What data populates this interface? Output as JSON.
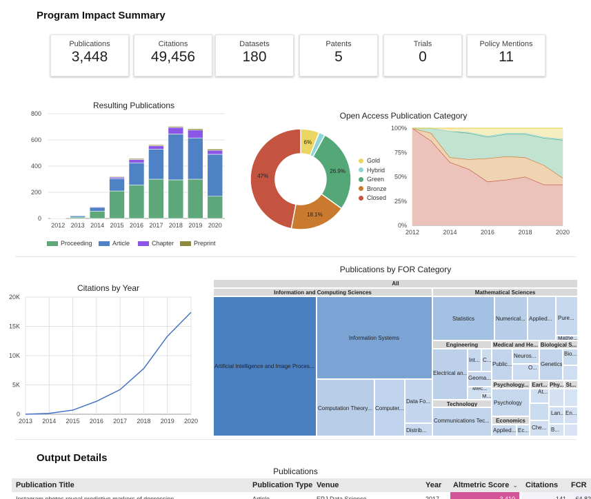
{
  "page": {
    "title": "Program Impact Summary",
    "output_title": "Output Details"
  },
  "kpis": [
    {
      "label": "Publications",
      "value": "3,448"
    },
    {
      "label": "Citations",
      "value": "49,456"
    },
    {
      "label": "Datasets",
      "value": "180"
    },
    {
      "label": "Patents",
      "value": "5"
    },
    {
      "label": "Trials",
      "value": "0"
    },
    {
      "label": "Policy Mentions",
      "value": "11"
    }
  ],
  "colors": {
    "proceeding": "#5da77b",
    "article": "#4f82c4",
    "chapter": "#8b55e8",
    "preprint": "#8c8a3a",
    "gold": "#ebd663",
    "hybrid": "#8fd5d6",
    "green": "#54a878",
    "bronze": "#c97a2e",
    "closed": "#c4533f",
    "altmetric": "#d4549a"
  },
  "chart_data": [
    {
      "type": "bar",
      "title": "Resulting Publications",
      "categories": [
        "2012",
        "2013",
        "2014",
        "2015",
        "2016",
        "2017",
        "2018",
        "2019",
        "2020"
      ],
      "ylim": [
        0,
        800
      ],
      "yticks": [
        "0",
        "200",
        "400",
        "600",
        "800"
      ],
      "series": [
        {
          "name": "Proceeding",
          "values": [
            3,
            10,
            55,
            210,
            255,
            300,
            295,
            300,
            170
          ]
        },
        {
          "name": "Article",
          "values": [
            3,
            10,
            30,
            95,
            170,
            230,
            350,
            315,
            320
          ]
        },
        {
          "name": "Chapter",
          "values": [
            1,
            2,
            5,
            10,
            25,
            25,
            50,
            60,
            30
          ]
        },
        {
          "name": "Preprint",
          "values": [
            0,
            1,
            3,
            5,
            8,
            8,
            8,
            10,
            10
          ]
        }
      ],
      "legend": "bottom"
    },
    {
      "type": "pie",
      "title": "Open Access Publication Category",
      "labels": [
        "Gold",
        "Hybrid",
        "Green",
        "Bronze",
        "Closed"
      ],
      "values": [
        6,
        2,
        26.9,
        18.1,
        47
      ],
      "data_labels": [
        "6%",
        "",
        "26.9%",
        "18.1%",
        "47%"
      ],
      "legend": "right"
    },
    {
      "type": "area",
      "x": [
        2012,
        2013,
        2014,
        2015,
        2016,
        2017,
        2018,
        2019,
        2020
      ],
      "xticks": [
        "2012",
        "2014",
        "2016",
        "2018",
        "2020"
      ],
      "yticks": [
        "0%",
        "25%",
        "50%",
        "75%",
        "100%"
      ],
      "ylim": [
        0,
        100
      ],
      "series": [
        {
          "name": "Closed",
          "values": [
            100,
            87,
            65,
            58,
            45,
            47,
            50,
            42,
            42
          ]
        },
        {
          "name": "Bronze",
          "values": [
            0,
            8,
            5,
            10,
            24,
            24,
            20,
            20,
            7
          ]
        },
        {
          "name": "Green",
          "values": [
            0,
            5,
            27,
            27,
            22,
            23,
            24,
            28,
            39
          ]
        },
        {
          "name": "Hybrid",
          "values": [
            0,
            0,
            0,
            1,
            1,
            1,
            1,
            1,
            1
          ]
        },
        {
          "name": "Gold",
          "values": [
            0,
            0,
            3,
            4,
            8,
            5,
            5,
            9,
            11
          ]
        }
      ]
    },
    {
      "type": "line",
      "title": "Citations by Year",
      "x": [
        "2013",
        "2014",
        "2015",
        "2016",
        "2017",
        "2018",
        "2019",
        "2020"
      ],
      "values": [
        0,
        150,
        700,
        2200,
        4200,
        7800,
        13300,
        17400
      ],
      "ylim": [
        0,
        20000
      ],
      "yticks": [
        "0",
        "5K",
        "10K",
        "15K",
        "20K"
      ]
    },
    {
      "type": "treemap",
      "title": "Publications by FOR Category",
      "root": "All",
      "groups": [
        {
          "name": "Information and Computing Sciences",
          "children": [
            "Artificial Intelligence and Image Proces...",
            "Information Systems",
            "Computation Theory...",
            "Computer...",
            "Data Fo...",
            "Distrib..."
          ]
        },
        {
          "name": "Mathematical Sciences",
          "children": [
            "Statistics",
            "Numerical...",
            "Applied...",
            "Pure...",
            "Mathe..."
          ]
        },
        {
          "name": "Engineering",
          "children": [
            "Electrical an...",
            "Int...",
            "C...",
            "Geoma...",
            "Mec...",
            "M..."
          ]
        },
        {
          "name": "Medical and He...",
          "children": [
            "Public...",
            "Neuros...",
            "O..."
          ]
        },
        {
          "name": "Biological S...",
          "children": [
            "Genetics",
            "Bio...",
            "Mic..."
          ]
        },
        {
          "name": "Psychology...",
          "children": [
            "Psychology"
          ]
        },
        {
          "name": "Eart...",
          "children": [
            "At...",
            "Astr..."
          ]
        },
        {
          "name": "Phy...",
          "children": []
        },
        {
          "name": "St...",
          "children": []
        },
        {
          "name": "Technology",
          "children": [
            "Communications Tec..."
          ]
        },
        {
          "name": "Economics",
          "children": [
            "Applied...",
            "Ec..."
          ]
        },
        {
          "name": "Educ...",
          "children": []
        },
        {
          "name": "Lan...",
          "children": [
            "En..."
          ]
        },
        {
          "name": "Che...",
          "children": [
            "B...",
            "L..."
          ]
        }
      ]
    }
  ],
  "table": {
    "caption": "Publications",
    "columns": [
      "Publication Title",
      "Publication Type",
      "Venue",
      "Year",
      "Altmetric Score",
      "Citations",
      "FCR"
    ],
    "sort_indicator": "⌄",
    "rows": [
      {
        "title": "Instagram photos reveal predictive markers of depression",
        "type": "Article",
        "venue": "EPJ Data Science",
        "year": "2017",
        "altmetric": "3,410",
        "citations": "141",
        "fcr": "64.82"
      }
    ]
  }
}
